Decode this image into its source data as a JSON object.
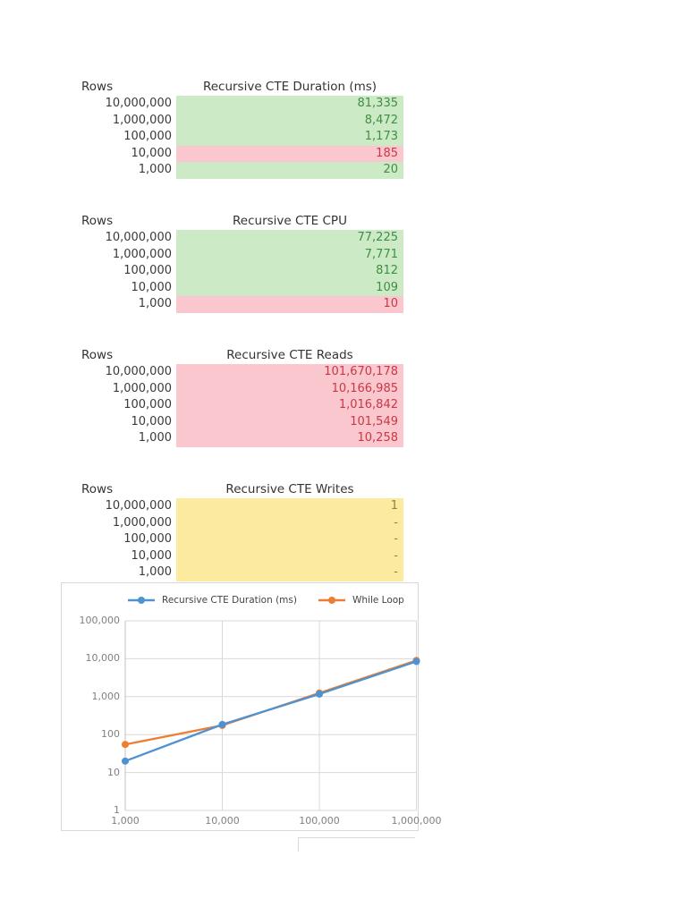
{
  "tables": [
    {
      "corner_label": "Rows",
      "title": "Recursive CTE Duration (ms)",
      "rows": [
        {
          "label": "10,000,000",
          "value": "81,335",
          "state": "good"
        },
        {
          "label": "1,000,000",
          "value": "8,472",
          "state": "good"
        },
        {
          "label": "100,000",
          "value": "1,173",
          "state": "good"
        },
        {
          "label": "10,000",
          "value": "185",
          "state": "bad"
        },
        {
          "label": "1,000",
          "value": "20",
          "state": "good"
        }
      ]
    },
    {
      "corner_label": "Rows",
      "title": "Recursive CTE CPU",
      "rows": [
        {
          "label": "10,000,000",
          "value": "77,225",
          "state": "good"
        },
        {
          "label": "1,000,000",
          "value": "7,771",
          "state": "good"
        },
        {
          "label": "100,000",
          "value": "812",
          "state": "good"
        },
        {
          "label": "10,000",
          "value": "109",
          "state": "good"
        },
        {
          "label": "1,000",
          "value": "10",
          "state": "bad"
        }
      ]
    },
    {
      "corner_label": "Rows",
      "title": "Recursive CTE Reads",
      "rows": [
        {
          "label": "10,000,000",
          "value": "101,670,178",
          "state": "bad"
        },
        {
          "label": "1,000,000",
          "value": "10,166,985",
          "state": "bad"
        },
        {
          "label": "100,000",
          "value": "1,016,842",
          "state": "bad"
        },
        {
          "label": "10,000",
          "value": "101,549",
          "state": "bad"
        },
        {
          "label": "1,000",
          "value": "10,258",
          "state": "bad"
        }
      ]
    },
    {
      "corner_label": "Rows",
      "title": "Recursive CTE Writes",
      "rows": [
        {
          "label": "10,000,000",
          "value": "1",
          "state": "neutral"
        },
        {
          "label": "1,000,000",
          "value": "-",
          "state": "neutral"
        },
        {
          "label": "100,000",
          "value": "-",
          "state": "neutral"
        },
        {
          "label": "10,000",
          "value": "-",
          "state": "neutral"
        },
        {
          "label": "1,000",
          "value": "-",
          "state": "neutral"
        }
      ]
    }
  ],
  "colors": {
    "good_bg": "#cdeac6",
    "good_text": "#3e8e43",
    "bad_bg": "#f9c7cd",
    "bad_text": "#cb3745",
    "neutral_bg": "#fceb9f",
    "neutral_text": "#8e7d4d",
    "grid": "#d9d9d9",
    "tick_text": "#808080"
  },
  "chart_data": {
    "type": "line",
    "x": [
      1000,
      10000,
      100000,
      1000000
    ],
    "x_scale": "log",
    "y_scale": "log",
    "ylim": [
      1,
      100000
    ],
    "xlim": [
      1000,
      1000000
    ],
    "grid": true,
    "legend_position": "top",
    "series": [
      {
        "name": "Recursive CTE Duration (ms)",
        "color": "#4f92d2",
        "values": [
          20,
          185,
          1173,
          8472
        ]
      },
      {
        "name": "While Loop",
        "color": "#ed7d31",
        "values": [
          55,
          175,
          1250,
          9000
        ]
      }
    ],
    "y_ticks": [
      "1",
      "10",
      "100",
      "1,000",
      "10,000",
      "100,000"
    ],
    "x_ticks": [
      "1,000",
      "10,000",
      "100,000",
      "1,000,000"
    ]
  }
}
